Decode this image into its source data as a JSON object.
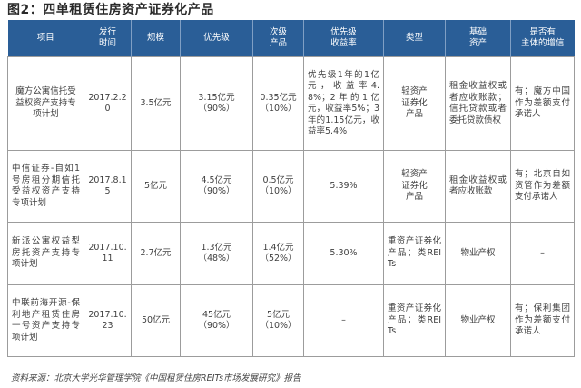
{
  "title": "图2：四单租赁住房资产证券化产品",
  "columns": [
    "项目",
    "发行\n时间",
    "规模",
    "优先级",
    "次级\n产品",
    "优先级\n收益率",
    "类型",
    "基础\n资产",
    "是否有\n主体的增信"
  ],
  "rows": [
    {
      "project": "魔方公寓信托受益权资产支持专项计划",
      "issue_date": "2017.2.20",
      "scale": "3.5亿元",
      "senior": "3.15亿元\n（90%）",
      "subordinate": "0.35亿元\n（10%）",
      "senior_yield": "优先级1年的1亿元，收益率4.8%；2年的1亿元，收益率5%；3年的1.15亿元，收益率5.4%",
      "type": "轻资产\n证券化\n产品",
      "underlying": "租金收益权或者应收账款；信托贷款或者委托贷款债权",
      "credit_enhancement": "有；魔方中国作为差额支付承诺人"
    },
    {
      "project": "中信证券-自如1号房租分期信托受益权资产支持专项计划",
      "issue_date": "2017.8.15",
      "scale": "5亿元",
      "senior": "4.5亿元\n（90%）",
      "subordinate": "0.5亿元\n（10%）",
      "senior_yield": "5.39%",
      "type": "轻资产\n证券化\n产品",
      "underlying": "租金收益权或者应收账款",
      "credit_enhancement": "有；北京自如资管作为差额支付承诺人"
    },
    {
      "project": "新派公寓权益型房托资产支持专项计划",
      "issue_date": "2017.10.11",
      "scale": "2.7亿元",
      "senior": "1.3亿元\n（48%）",
      "subordinate": "1.4亿元\n（52%）",
      "senior_yield": "5.30%",
      "type": "重资产证券化产品；类REITs",
      "underlying": "物业产权",
      "credit_enhancement": "–"
    },
    {
      "project": "中联前海开源-保利地产租赁住房一号资产支持专项计划",
      "issue_date": "2017.10.23",
      "scale": "50亿元",
      "senior": "45亿元\n（90%）",
      "subordinate": "5亿元\n（10%）",
      "senior_yield": "–",
      "type": "重资产证券化产品；类REITs",
      "underlying": "物业产权",
      "credit_enhancement": "有；保利集团作为差额支付承诺人"
    }
  ],
  "source": "资料来源：北京大学光华管理学院《中国租赁住房REITs市场发展研究》报告"
}
